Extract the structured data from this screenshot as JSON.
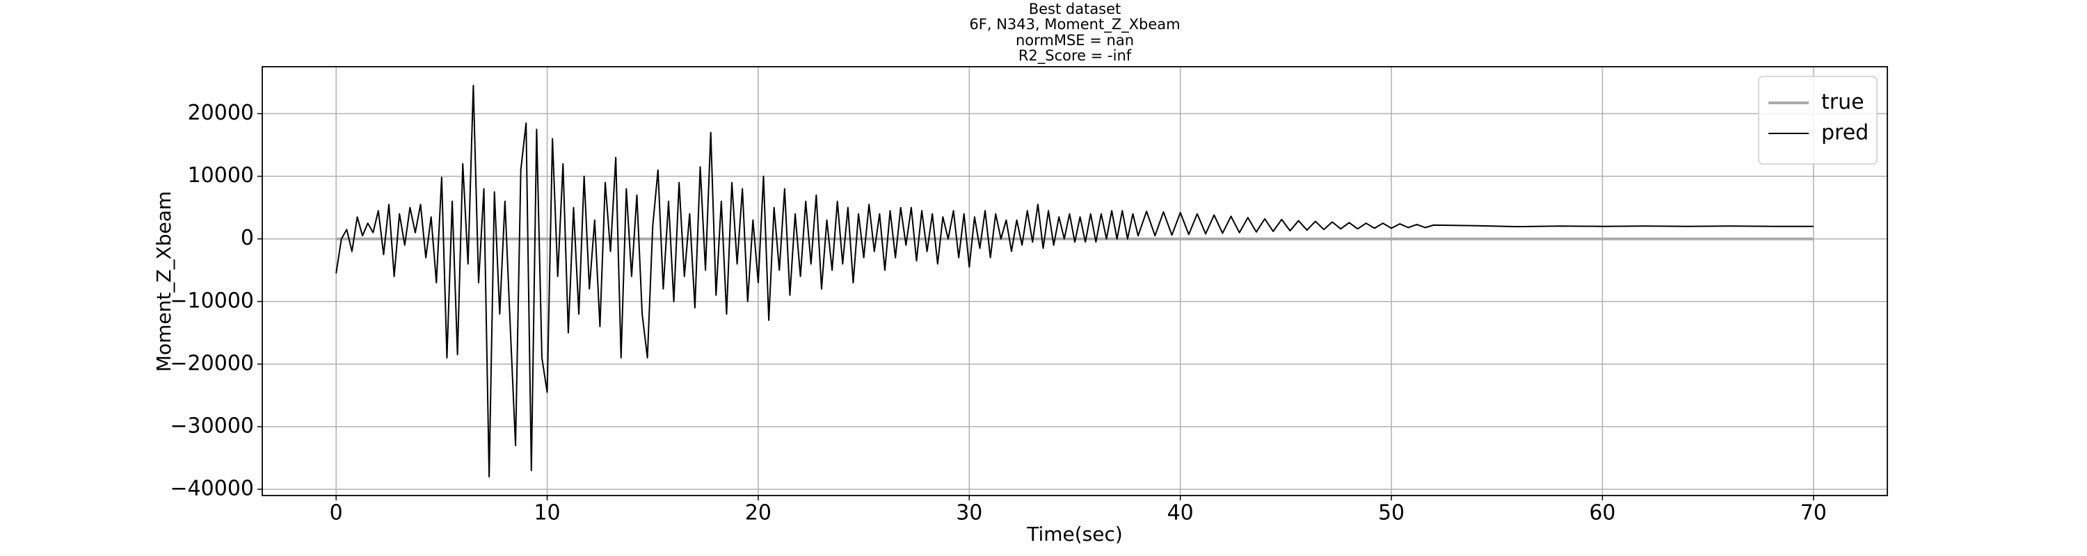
{
  "chart_data": {
    "type": "line",
    "title": [
      "Best dataset",
      "6F, N343, Moment_Z_Xbeam",
      "normMSE = nan",
      "R2_Score = -inf"
    ],
    "xlabel": "Time(sec)",
    "ylabel": "Moment_Z_Xbeam",
    "xlim": [
      -3.5,
      73.5
    ],
    "ylim": [
      -41000,
      27500
    ],
    "xticks": [
      0,
      10,
      20,
      30,
      40,
      50,
      60,
      70
    ],
    "yticks": [
      {
        "value": -40000,
        "label": "−40000"
      },
      {
        "value": -30000,
        "label": "−30000"
      },
      {
        "value": -20000,
        "label": "−20000"
      },
      {
        "value": -10000,
        "label": "−10000"
      },
      0,
      10000,
      20000
    ],
    "grid": true,
    "legend": "upper right",
    "x": [
      0,
      0.25,
      0.5,
      0.75,
      1,
      1.25,
      1.5,
      1.75,
      2,
      2.25,
      2.5,
      2.75,
      3,
      3.25,
      3.5,
      3.75,
      4,
      4.25,
      4.5,
      4.75,
      5,
      5.25,
      5.5,
      5.75,
      6,
      6.25,
      6.5,
      6.75,
      7,
      7.25,
      7.5,
      7.75,
      8,
      8.25,
      8.5,
      8.75,
      9,
      9.25,
      9.5,
      9.75,
      10,
      10.25,
      10.5,
      10.75,
      11,
      11.25,
      11.5,
      11.75,
      12,
      12.25,
      12.5,
      12.75,
      13,
      13.25,
      13.5,
      13.75,
      14,
      14.25,
      14.5,
      14.75,
      15,
      15.25,
      15.5,
      15.75,
      16,
      16.25,
      16.5,
      16.75,
      17,
      17.25,
      17.5,
      17.75,
      18,
      18.25,
      18.5,
      18.75,
      19,
      19.25,
      19.5,
      19.75,
      20,
      20.25,
      20.5,
      20.75,
      21,
      21.25,
      21.5,
      21.75,
      22,
      22.25,
      22.5,
      22.75,
      23,
      23.25,
      23.5,
      23.75,
      24,
      24.25,
      24.5,
      24.75,
      25,
      25.25,
      25.5,
      25.75,
      26,
      26.25,
      26.5,
      26.75,
      27,
      27.25,
      27.5,
      27.75,
      28,
      28.25,
      28.5,
      28.75,
      29,
      29.25,
      29.5,
      29.75,
      30,
      30.25,
      30.5,
      30.75,
      31,
      31.25,
      31.5,
      31.75,
      32,
      32.25,
      32.5,
      32.75,
      33,
      33.25,
      33.5,
      33.75,
      34,
      34.25,
      34.5,
      34.75,
      35,
      35.25,
      35.5,
      35.75,
      36,
      36.25,
      36.5,
      36.75,
      37,
      37.25,
      37.5,
      37.75,
      38,
      38.4,
      38.8,
      39.2,
      39.6,
      40,
      40.4,
      40.8,
      41.2,
      41.6,
      42,
      42.4,
      42.8,
      43.2,
      43.6,
      44,
      44.4,
      44.8,
      45.2,
      45.6,
      46,
      46.4,
      46.8,
      47.2,
      47.6,
      48,
      48.4,
      48.8,
      49.2,
      49.6,
      50,
      50.4,
      50.8,
      51.2,
      51.6,
      52,
      54,
      56,
      58,
      60,
      62,
      64,
      66,
      68,
      70
    ],
    "series": [
      {
        "name": "true",
        "color": "#aaaaaa",
        "width": 4,
        "values": [
          0,
          0,
          0,
          0,
          0,
          0,
          0,
          0,
          0,
          0,
          0,
          0,
          0,
          0,
          0,
          0,
          0,
          0,
          0,
          0,
          0,
          0,
          0,
          0,
          0,
          0,
          0,
          0,
          0,
          0,
          0,
          0,
          0,
          0,
          0,
          0,
          0,
          0,
          0,
          0,
          0,
          0,
          0,
          0,
          0,
          0,
          0,
          0,
          0,
          0,
          0,
          0,
          0,
          0,
          0,
          0,
          0,
          0,
          0,
          0,
          0,
          0,
          0,
          0,
          0,
          0,
          0,
          0,
          0,
          0,
          0,
          0,
          0,
          0,
          0,
          0,
          0,
          0,
          0,
          0,
          0,
          0,
          0,
          0,
          0,
          0,
          0,
          0,
          0,
          0,
          0,
          0,
          0,
          0,
          0,
          0,
          0,
          0,
          0,
          0,
          0,
          0,
          0,
          0,
          0,
          0,
          0,
          0,
          0,
          0,
          0,
          0,
          0,
          0,
          0,
          0,
          0,
          0,
          0,
          0,
          0,
          0,
          0,
          0,
          0,
          0,
          0,
          0,
          0,
          0,
          0,
          0,
          0,
          0,
          0,
          0,
          0,
          0,
          0,
          0,
          0,
          0,
          0,
          0,
          0,
          0,
          0,
          0,
          0,
          0,
          0,
          0,
          0,
          0,
          0,
          0,
          0,
          0,
          0,
          0,
          0,
          0,
          0,
          0,
          0,
          0,
          0,
          0,
          0,
          0,
          0,
          0,
          0,
          0,
          0,
          0,
          0,
          0,
          0,
          0,
          0,
          0,
          0,
          0,
          0,
          0,
          0,
          0,
          0,
          0,
          0,
          0,
          0,
          0,
          0,
          0,
          0
        ]
      },
      {
        "name": "pred",
        "color": "#000000",
        "width": 2,
        "values": [
          -5500,
          0,
          1500,
          -2000,
          3500,
          500,
          2500,
          1000,
          4500,
          -2500,
          5500,
          -6000,
          4000,
          -1000,
          5000,
          1000,
          5500,
          -3000,
          3500,
          -7000,
          9800,
          -19000,
          6000,
          -18500,
          12000,
          -4000,
          24500,
          -7000,
          8000,
          -38000,
          7500,
          -12000,
          6000,
          -14000,
          -33000,
          11000,
          18500,
          -37000,
          17500,
          -19000,
          -24500,
          16000,
          -6000,
          12000,
          -15000,
          5000,
          -12000,
          10000,
          -8000,
          3000,
          -14000,
          9000,
          -2000,
          13000,
          -19000,
          8000,
          -6000,
          7000,
          -12000,
          -19000,
          2000,
          11000,
          -8000,
          6000,
          -10000,
          9000,
          -6000,
          4000,
          -11000,
          11500,
          -5000,
          17000,
          -9000,
          6000,
          -12000,
          9000,
          -4000,
          8000,
          -10000,
          3000,
          -7000,
          10000,
          -13000,
          5000,
          -5000,
          8000,
          -9000,
          4000,
          -6000,
          6000,
          -4000,
          7000,
          -8000,
          3000,
          -5000,
          6000,
          -4000,
          5000,
          -7000,
          4000,
          -3000,
          5500,
          -2000,
          4000,
          -5000,
          4500,
          -3000,
          5000,
          -1000,
          5000,
          -3500,
          4500,
          -2000,
          4000,
          -4000,
          3500,
          0,
          4500,
          -3000,
          4000,
          -4500,
          3500,
          -1500,
          4500,
          -3000,
          4000,
          0,
          3000,
          -2000,
          3000,
          -1000,
          4500,
          -500,
          5500,
          -1500,
          4500,
          -1000,
          3500,
          0,
          4000,
          -500,
          3500,
          -500,
          4000,
          -500,
          4000,
          0,
          4500,
          0,
          4500,
          0,
          4000,
          500,
          4400,
          500,
          4300,
          600,
          4200,
          700,
          4000,
          800,
          3800,
          900,
          3600,
          1000,
          3400,
          1100,
          3200,
          1200,
          3100,
          1300,
          2900,
          1400,
          2800,
          1500,
          2700,
          1600,
          2600,
          1600,
          2500,
          1700,
          2500,
          1700,
          2400,
          1800,
          2300,
          1800,
          2200,
          2100,
          1950,
          2050,
          2000,
          2050,
          2000,
          2050,
          2000,
          2000
        ]
      }
    ]
  }
}
